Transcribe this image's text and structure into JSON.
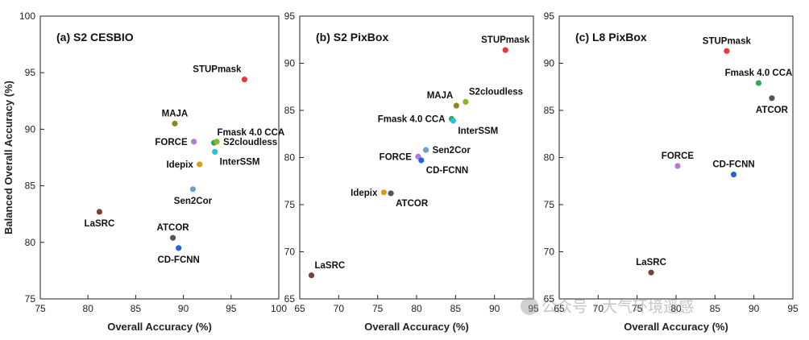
{
  "watermark": "公众号 · 大气环境遥感",
  "chart_data": [
    {
      "type": "scatter",
      "title": "(a) S2 CESBIO",
      "xlabel": "Overall Accuracy (%)",
      "ylabel": "Balanced Overall Accuracy (%)",
      "xlim": [
        75,
        100
      ],
      "ylim": [
        75,
        100
      ],
      "xticks": [
        75,
        80,
        85,
        90,
        95,
        100
      ],
      "yticks": [
        75,
        80,
        85,
        90,
        95,
        100
      ],
      "grid": false,
      "points": [
        {
          "label": "STUPmask",
          "x": 96.4,
          "y": 94.4,
          "color": "#e8383b",
          "label_pos": "above-left"
        },
        {
          "label": "MAJA",
          "x": 89.1,
          "y": 90.5,
          "color": "#8a8a1e",
          "label_pos": "above"
        },
        {
          "label": "Fmask 4.0 CCA",
          "x": 93.2,
          "y": 88.8,
          "color": "#33a65a",
          "label_pos": "above-right"
        },
        {
          "label": "S2cloudless",
          "x": 93.5,
          "y": 88.9,
          "color": "#86b81f",
          "label_pos": "right"
        },
        {
          "label": "FORCE",
          "x": 91.1,
          "y": 88.9,
          "color": "#b07ae0",
          "label_pos": "left"
        },
        {
          "label": "InterSSM",
          "x": 93.3,
          "y": 88.0,
          "color": "#25c4d8",
          "label_pos": "below-right"
        },
        {
          "label": "Idepix",
          "x": 91.7,
          "y": 86.9,
          "color": "#d4a014",
          "label_pos": "left"
        },
        {
          "label": "Sen2Cor",
          "x": 91.0,
          "y": 84.7,
          "color": "#6e9ed3",
          "label_pos": "below"
        },
        {
          "label": "LaSRC",
          "x": 81.2,
          "y": 82.7,
          "color": "#7a4040",
          "label_pos": "below"
        },
        {
          "label": "ATCOR",
          "x": 88.9,
          "y": 80.4,
          "color": "#555555",
          "label_pos": "above"
        },
        {
          "label": "CD-FCNN",
          "x": 89.5,
          "y": 79.5,
          "color": "#1f66d6",
          "label_pos": "below"
        }
      ]
    },
    {
      "type": "scatter",
      "title": "(b) S2 PixBox",
      "xlabel": "Overall Accuracy (%)",
      "ylabel": "",
      "xlim": [
        65,
        95
      ],
      "ylim": [
        65,
        95
      ],
      "xticks": [
        65,
        70,
        75,
        80,
        85,
        90,
        95
      ],
      "yticks": [
        65,
        70,
        75,
        80,
        85,
        90,
        95
      ],
      "grid": false,
      "points": [
        {
          "label": "STUPmask",
          "x": 91.4,
          "y": 91.4,
          "color": "#e8383b",
          "label_pos": "above"
        },
        {
          "label": "MAJA",
          "x": 85.1,
          "y": 85.5,
          "color": "#8a8a1e",
          "label_pos": "above-left"
        },
        {
          "label": "S2cloudless",
          "x": 86.3,
          "y": 85.9,
          "color": "#86b81f",
          "label_pos": "above-right"
        },
        {
          "label": "Fmask 4.0 CCA",
          "x": 84.5,
          "y": 84.1,
          "color": "#33a65a",
          "label_pos": "left"
        },
        {
          "label": "InterSSM",
          "x": 84.7,
          "y": 83.9,
          "color": "#25c4d8",
          "label_pos": "below-right"
        },
        {
          "label": "FORCE",
          "x": 80.2,
          "y": 80.1,
          "color": "#b07ae0",
          "label_pos": "left"
        },
        {
          "label": "Sen2Cor",
          "x": 81.2,
          "y": 80.8,
          "color": "#6e9ed3",
          "label_pos": "right"
        },
        {
          "label": "CD-FCNN",
          "x": 80.6,
          "y": 79.7,
          "color": "#1f66d6",
          "label_pos": "below-right"
        },
        {
          "label": "Idepix",
          "x": 75.8,
          "y": 76.3,
          "color": "#d4a014",
          "label_pos": "left"
        },
        {
          "label": "ATCOR",
          "x": 76.7,
          "y": 76.2,
          "color": "#555555",
          "label_pos": "below-right"
        },
        {
          "label": "LaSRC",
          "x": 66.5,
          "y": 67.5,
          "color": "#7a4040",
          "label_pos": "above-right"
        }
      ]
    },
    {
      "type": "scatter",
      "title": "(c) L8 PixBox",
      "xlabel": "Overall Accuracy (%)",
      "ylabel": "",
      "xlim": [
        65,
        95
      ],
      "ylim": [
        65,
        95
      ],
      "xticks": [
        65,
        70,
        75,
        80,
        85,
        90,
        95
      ],
      "yticks": [
        65,
        70,
        75,
        80,
        85,
        90,
        95
      ],
      "grid": false,
      "points": [
        {
          "label": "STUPmask",
          "x": 86.5,
          "y": 91.3,
          "color": "#e8383b",
          "label_pos": "above"
        },
        {
          "label": "Fmask 4.0 CCA",
          "x": 90.6,
          "y": 87.9,
          "color": "#33a65a",
          "label_pos": "above"
        },
        {
          "label": "ATCOR",
          "x": 92.3,
          "y": 86.3,
          "color": "#555555",
          "label_pos": "below"
        },
        {
          "label": "FORCE",
          "x": 80.2,
          "y": 79.1,
          "color": "#b07ae0",
          "label_pos": "above"
        },
        {
          "label": "CD-FCNN",
          "x": 87.4,
          "y": 78.2,
          "color": "#1f66d6",
          "label_pos": "above"
        },
        {
          "label": "LaSRC",
          "x": 76.8,
          "y": 67.8,
          "color": "#7a4040",
          "label_pos": "above"
        }
      ]
    }
  ]
}
